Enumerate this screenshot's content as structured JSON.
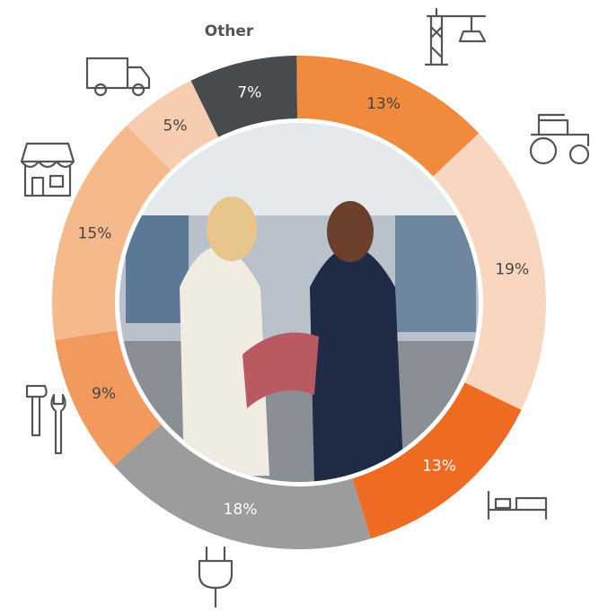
{
  "chart_data": {
    "type": "donut",
    "categories": [
      "Other",
      null,
      null,
      null,
      null,
      null,
      null,
      null
    ],
    "values": [
      7,
      13,
      19,
      13,
      18,
      9,
      15,
      5
    ],
    "value_labels": [
      "7%",
      "13%",
      "19%",
      "13%",
      "18%",
      "9%",
      "15%",
      "5%"
    ],
    "colors": [
      "#474b4d",
      "#f08a3c",
      "#f9d6bf",
      "#ef6b21",
      "#9c9c9c",
      "#f29a5e",
      "#f6b98c",
      "#f8ccb0"
    ]
  }
}
